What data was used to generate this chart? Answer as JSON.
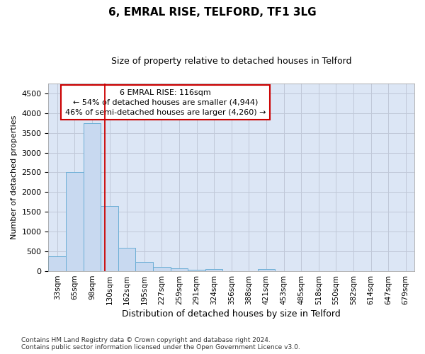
{
  "title": "6, EMRAL RISE, TELFORD, TF1 3LG",
  "subtitle": "Size of property relative to detached houses in Telford",
  "xlabel": "Distribution of detached houses by size in Telford",
  "ylabel": "Number of detached properties",
  "footnote1": "Contains HM Land Registry data © Crown copyright and database right 2024.",
  "footnote2": "Contains public sector information licensed under the Open Government Licence v3.0.",
  "annotation_line1": "6 EMRAL RISE: 116sqm",
  "annotation_line2": "← 54% of detached houses are smaller (4,944)",
  "annotation_line3": "46% of semi-detached houses are larger (4,260) →",
  "bar_color": "#c8d9f0",
  "bar_edge_color": "#6baed6",
  "red_line_color": "#cc0000",
  "grid_color": "#c0c8d8",
  "background_color": "#dce6f5",
  "fig_background": "#ffffff",
  "categories": [
    "33sqm",
    "65sqm",
    "98sqm",
    "130sqm",
    "162sqm",
    "195sqm",
    "227sqm",
    "259sqm",
    "291sqm",
    "324sqm",
    "356sqm",
    "388sqm",
    "421sqm",
    "453sqm",
    "485sqm",
    "518sqm",
    "550sqm",
    "582sqm",
    "614sqm",
    "647sqm",
    "679sqm"
  ],
  "values": [
    370,
    2500,
    3750,
    1650,
    590,
    240,
    105,
    65,
    45,
    50,
    0,
    0,
    55,
    0,
    0,
    0,
    0,
    0,
    0,
    0,
    0
  ],
  "red_line_x": 2.75,
  "ylim": [
    0,
    4750
  ],
  "yticks": [
    0,
    500,
    1000,
    1500,
    2000,
    2500,
    3000,
    3500,
    4000,
    4500
  ],
  "title_fontsize": 11,
  "subtitle_fontsize": 9,
  "xlabel_fontsize": 9,
  "ylabel_fontsize": 8,
  "footnote_fontsize": 6.5
}
